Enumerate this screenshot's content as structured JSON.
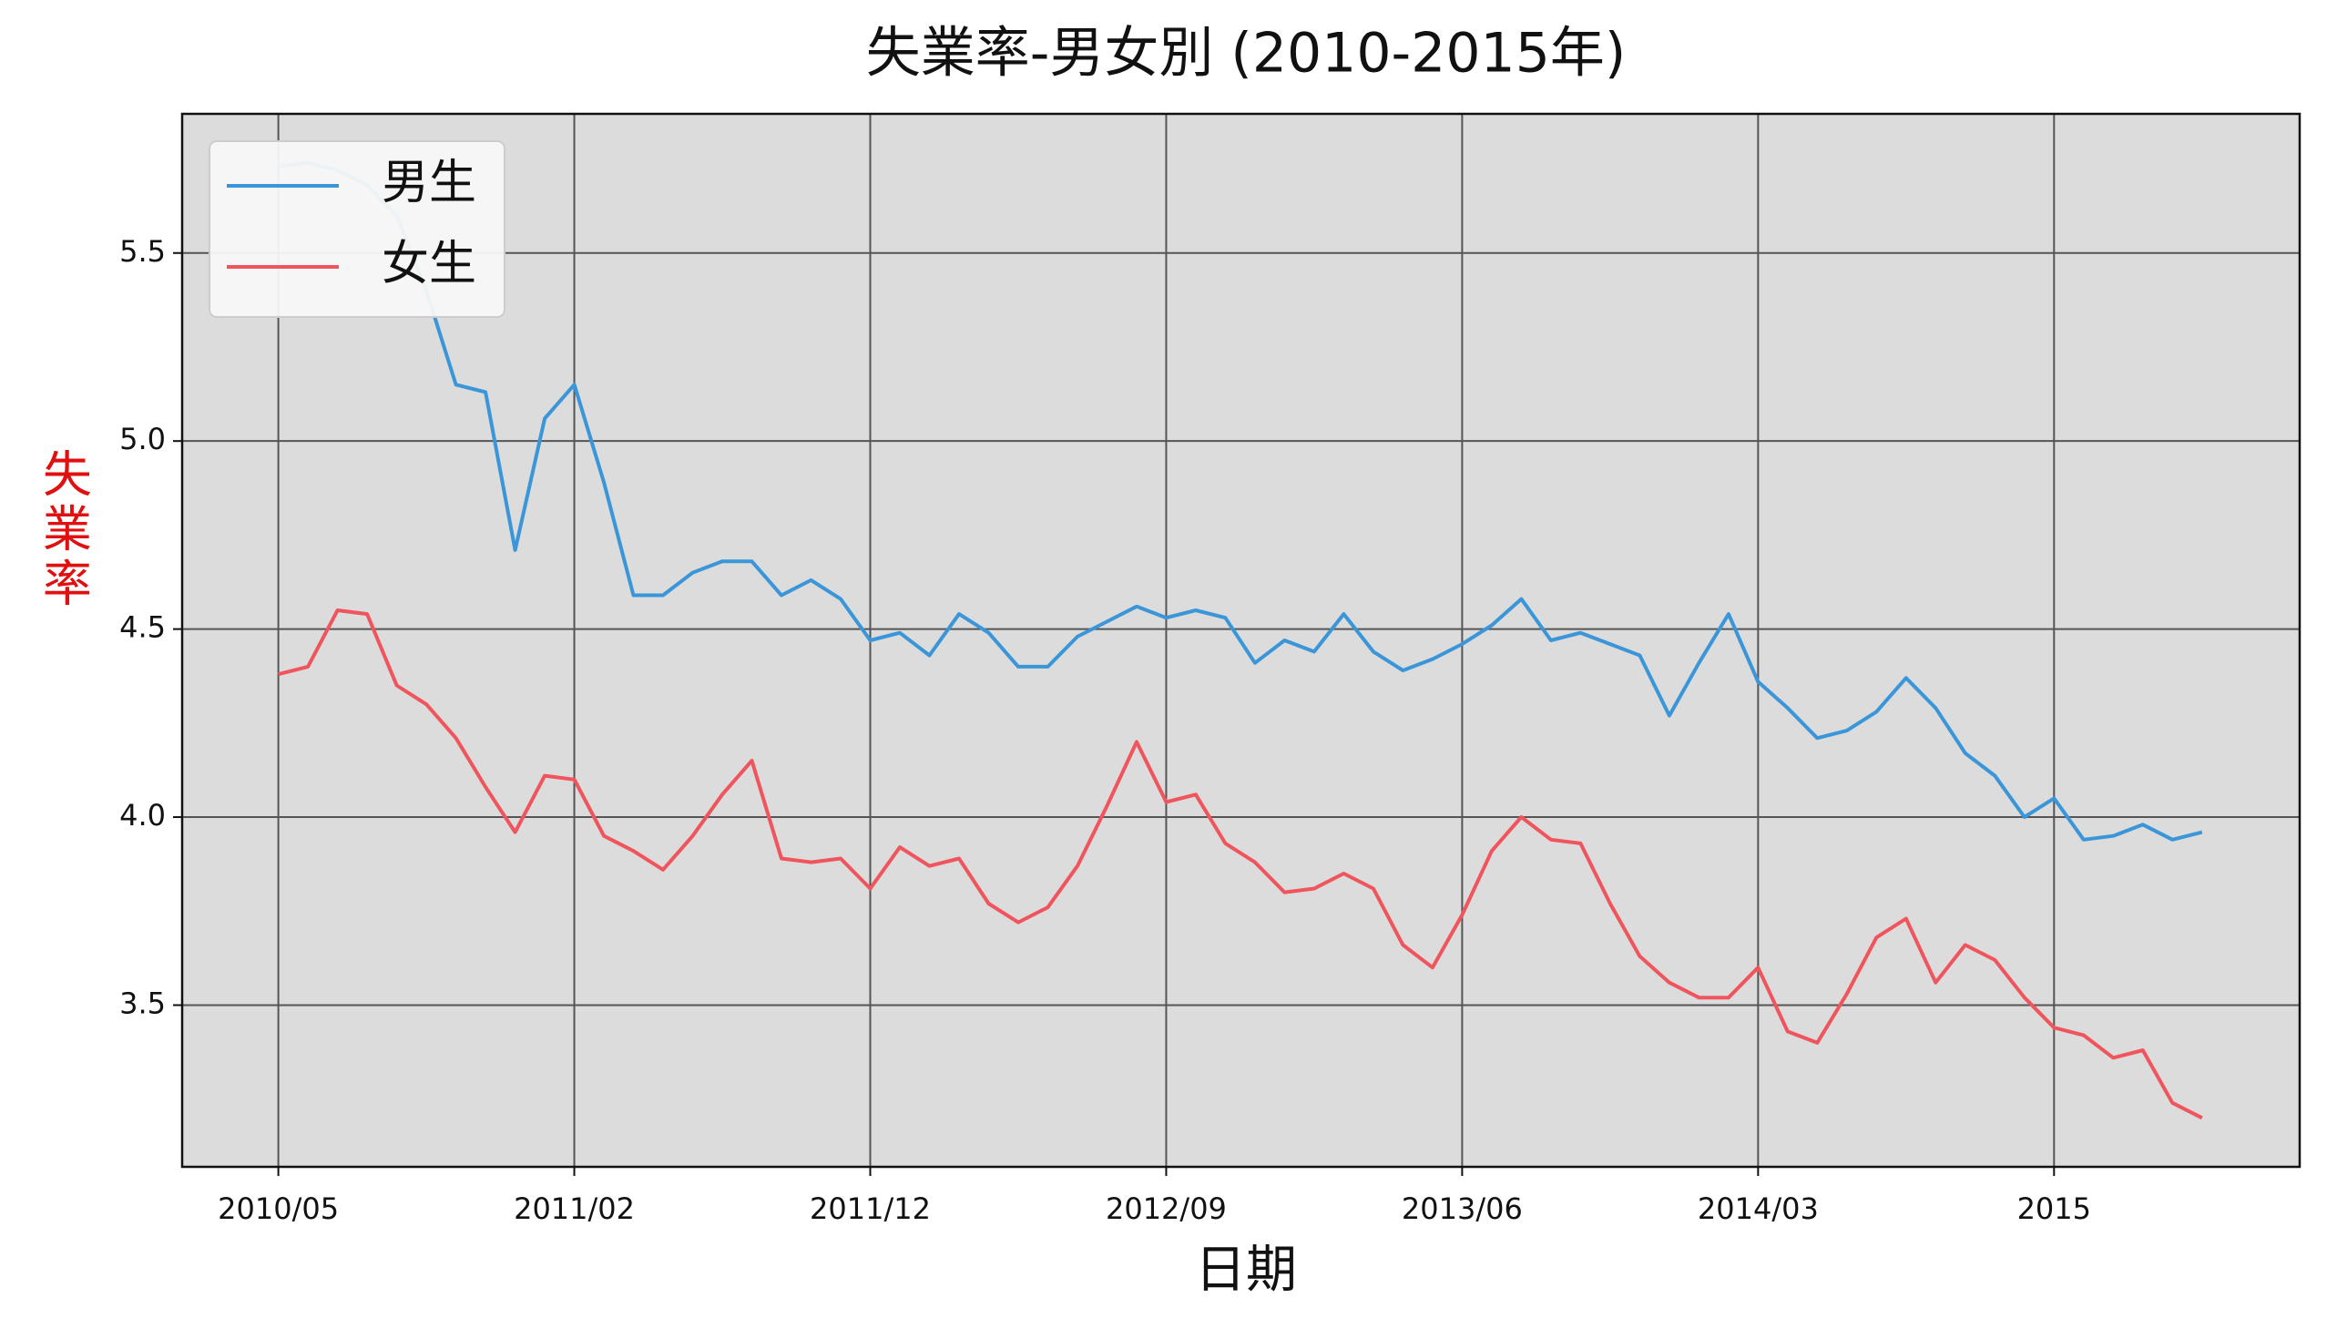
{
  "chart_data": {
    "type": "line",
    "title": "失業率-男女別 (2010-2015年)",
    "xlabel": "日期",
    "ylabel": "失業率",
    "categories": [
      "2010/05",
      null,
      null,
      null,
      null,
      null,
      null,
      null,
      null,
      null,
      "2011/02",
      null,
      null,
      null,
      null,
      null,
      null,
      null,
      null,
      null,
      "2011/12",
      null,
      null,
      null,
      null,
      null,
      null,
      null,
      null,
      null,
      "2012/09",
      null,
      null,
      null,
      null,
      null,
      null,
      null,
      null,
      null,
      "2013/06",
      null,
      null,
      null,
      null,
      null,
      null,
      null,
      null,
      null,
      "2014/03",
      null,
      null,
      null,
      null,
      null,
      null,
      null,
      null,
      null,
      "2015",
      null,
      null,
      null,
      null,
      null
    ],
    "series": [
      {
        "name": "男生",
        "color": "#3a96d8",
        "values": [
          5.73,
          5.74,
          5.72,
          5.68,
          5.6,
          5.4,
          5.15,
          5.13,
          4.71,
          5.06,
          5.15,
          4.89,
          4.59,
          4.59,
          4.65,
          4.68,
          4.68,
          4.59,
          4.63,
          4.58,
          4.47,
          4.49,
          4.43,
          4.54,
          4.49,
          4.4,
          4.4,
          4.48,
          4.52,
          4.56,
          4.53,
          4.55,
          4.53,
          4.41,
          4.47,
          4.44,
          4.54,
          4.44,
          4.39,
          4.42,
          4.46,
          4.51,
          4.58,
          4.47,
          4.49,
          4.46,
          4.43,
          4.27,
          4.41,
          4.54,
          4.36,
          4.29,
          4.21,
          4.23,
          4.28,
          4.37,
          4.29,
          4.17,
          4.11,
          4.0,
          4.05,
          3.94,
          3.95,
          3.98,
          3.94,
          3.96
        ]
      },
      {
        "name": "女生",
        "color": "#f0545c",
        "values": [
          4.38,
          4.4,
          4.55,
          4.54,
          4.35,
          4.3,
          4.21,
          4.08,
          3.96,
          4.11,
          4.1,
          3.95,
          3.91,
          3.86,
          3.95,
          4.06,
          4.15,
          3.89,
          3.88,
          3.89,
          3.81,
          3.92,
          3.87,
          3.89,
          3.77,
          3.72,
          3.76,
          3.87,
          4.03,
          4.2,
          4.04,
          4.06,
          3.93,
          3.88,
          3.8,
          3.81,
          3.85,
          3.81,
          3.66,
          3.6,
          3.74,
          3.91,
          4.0,
          3.94,
          3.93,
          3.77,
          3.63,
          3.56,
          3.52,
          3.52,
          3.6,
          3.43,
          3.4,
          3.53,
          3.68,
          3.73,
          3.56,
          3.66,
          3.62,
          3.52,
          3.44,
          3.42,
          3.36,
          3.38,
          3.24,
          3.2
        ]
      }
    ],
    "ylim": [
      3.07,
      5.87
    ],
    "yticks": [
      {
        "value": 3.5,
        "label": "3.5"
      },
      {
        "value": 4,
        "label": "4.0"
      },
      {
        "value": 4.5,
        "label": "4.5"
      },
      {
        "value": 5,
        "label": "5.0"
      },
      {
        "value": 5.5,
        "label": "5.5"
      }
    ],
    "grid": true,
    "legend": "upper left"
  }
}
